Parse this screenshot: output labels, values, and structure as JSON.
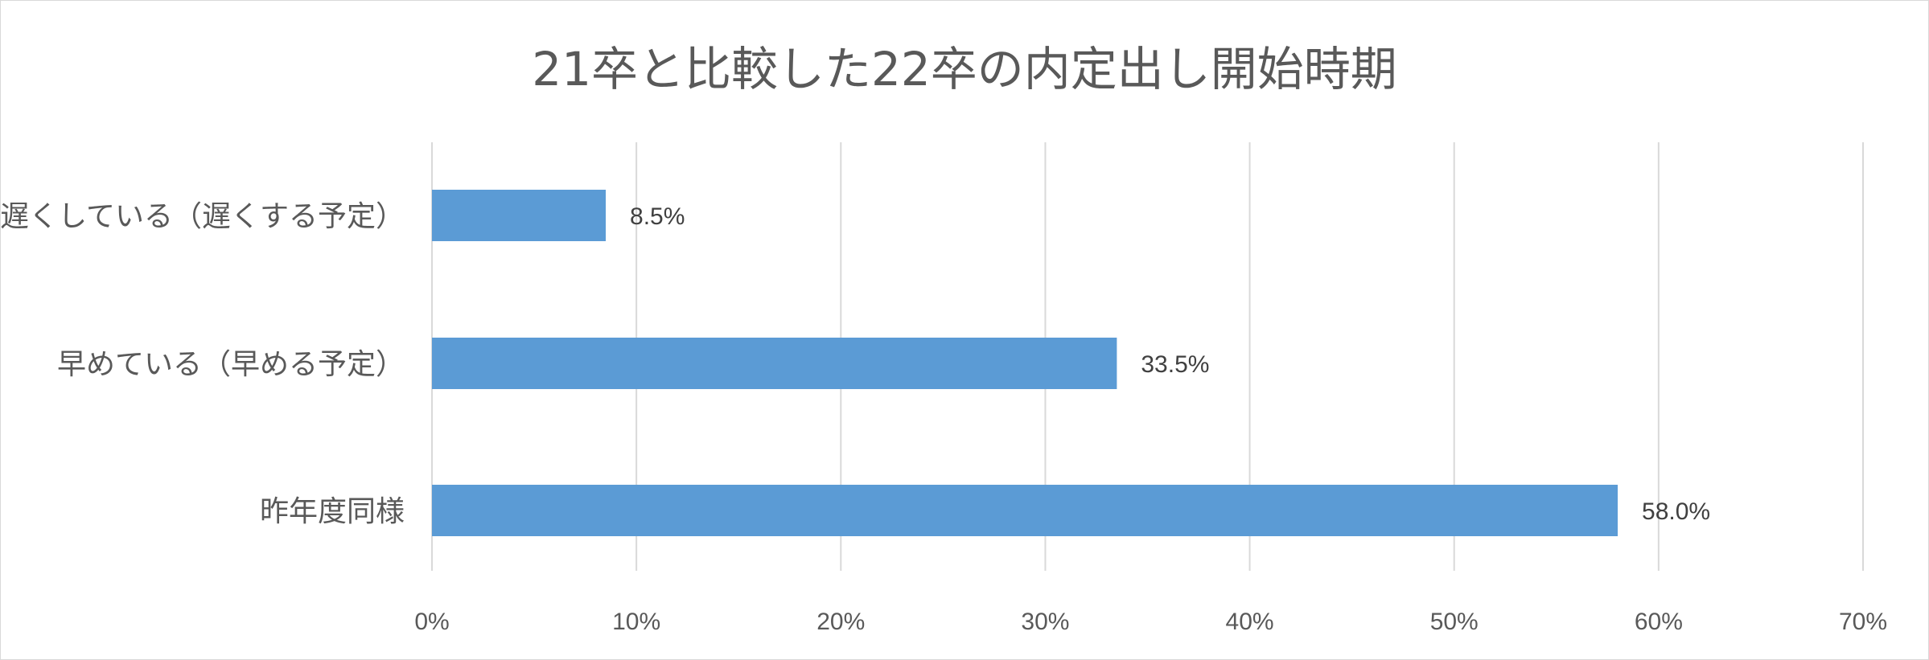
{
  "chart_data": {
    "type": "bar",
    "orientation": "horizontal",
    "title": "21卒と比較した22卒の内定出し開始時期",
    "categories": [
      "遅くしている（遅くする予定）",
      "早めている（早める予定）",
      "昨年度同様"
    ],
    "values": [
      8.5,
      33.5,
      58.0
    ],
    "data_labels": [
      "8.5%",
      "33.5%",
      "58.0%"
    ],
    "xlim": [
      0,
      70
    ],
    "ticks": [
      0,
      10,
      20,
      30,
      40,
      50,
      60,
      70
    ],
    "tick_labels": [
      "0%",
      "10%",
      "20%",
      "30%",
      "40%",
      "50%",
      "60%",
      "70%"
    ],
    "grid": "vertical",
    "legend": "none",
    "bar_color": "#5b9bd5",
    "grid_color": "#d9d9d9"
  }
}
